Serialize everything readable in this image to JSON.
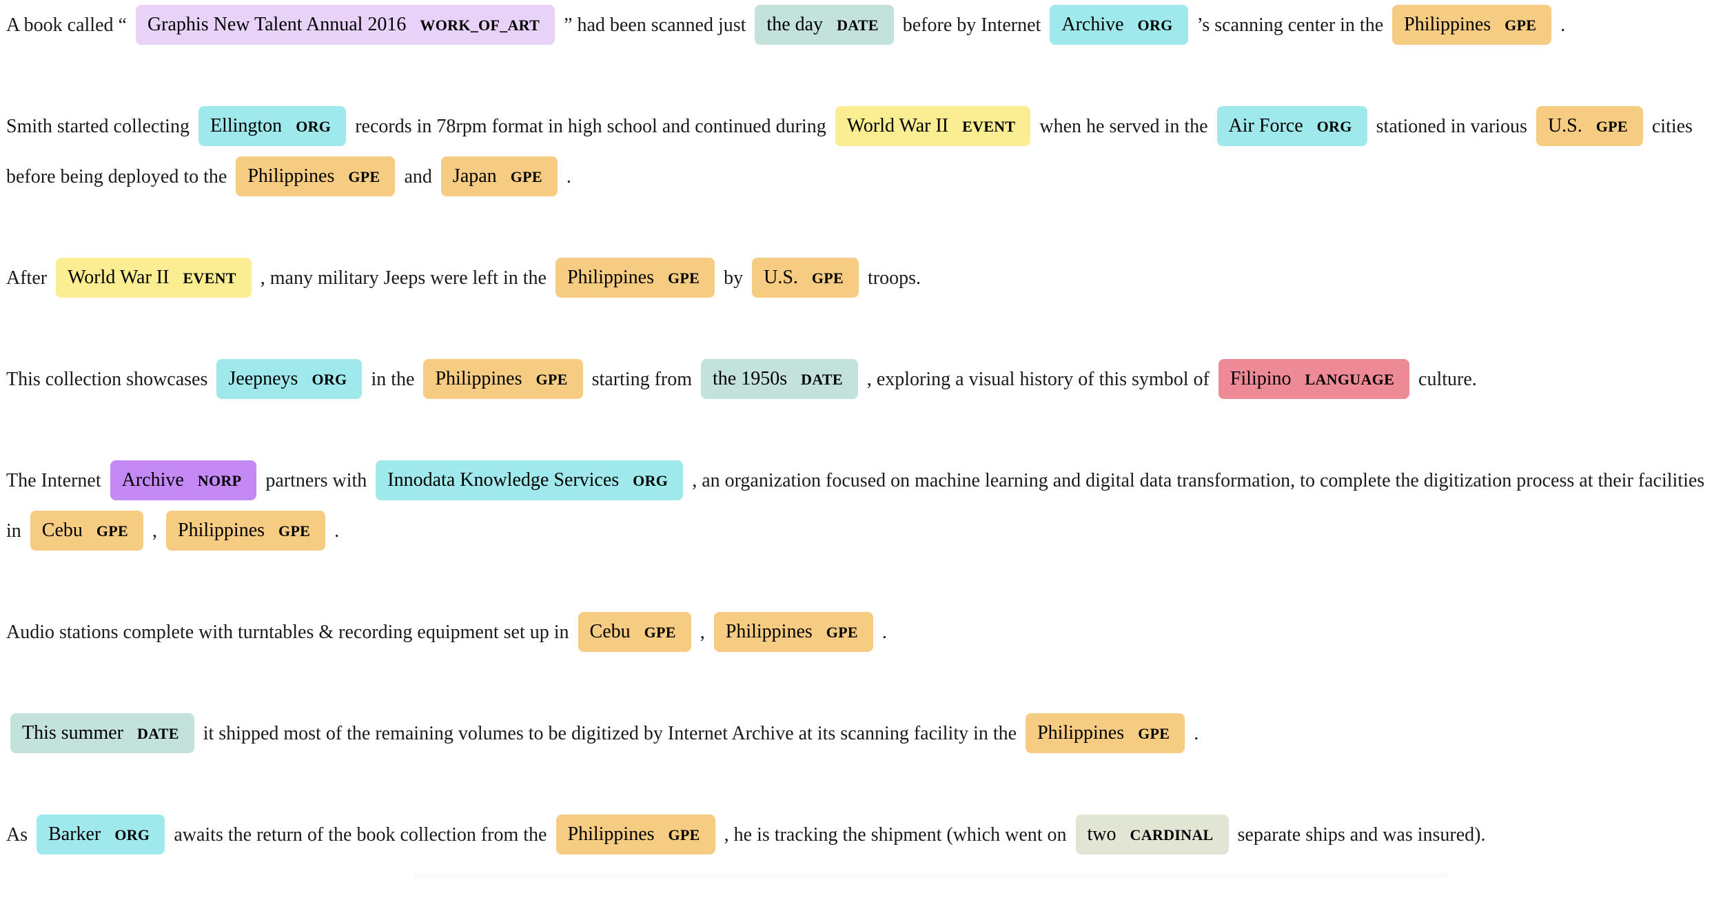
{
  "colors": {
    "WORK_OF_ART": "#e8d2f8",
    "DATE": "#c4e2dc",
    "ORG": "#9fe9ec",
    "GPE": "#f6cc83",
    "EVENT": "#fbed91",
    "LANGUAGE": "#ee8a96",
    "NORP": "#c589f5",
    "CARDINAL": "#e1e5d4"
  },
  "paragraphs": [
    [
      {
        "t": "A book called “"
      },
      {
        "e": "Graphis New Talent Annual 2016",
        "l": "WORK_OF_ART"
      },
      {
        "t": "” had been scanned just"
      },
      {
        "e": "the day",
        "l": "DATE"
      },
      {
        "t": "before by Internet"
      },
      {
        "e": "Archive",
        "l": "ORG"
      },
      {
        "t": "’s scanning center in the"
      },
      {
        "e": "Philippines",
        "l": "GPE"
      },
      {
        "t": "."
      }
    ],
    [
      {
        "t": "Smith started collecting"
      },
      {
        "e": "Ellington",
        "l": "ORG"
      },
      {
        "t": "records in 78rpm format in high school and continued during"
      },
      {
        "e": "World War II",
        "l": "EVENT"
      },
      {
        "t": "when he served in the"
      },
      {
        "e": "Air Force",
        "l": "ORG"
      },
      {
        "t": "stationed in various"
      },
      {
        "e": "U.S.",
        "l": "GPE"
      },
      {
        "t": "cities before being deployed to the"
      },
      {
        "e": "Philippines",
        "l": "GPE"
      },
      {
        "t": "and"
      },
      {
        "e": "Japan",
        "l": "GPE"
      },
      {
        "t": "."
      }
    ],
    [
      {
        "t": "After"
      },
      {
        "e": "World War II",
        "l": "EVENT"
      },
      {
        "t": ", many military Jeeps were left in the"
      },
      {
        "e": "Philippines",
        "l": "GPE"
      },
      {
        "t": "by"
      },
      {
        "e": "U.S.",
        "l": "GPE"
      },
      {
        "t": "troops."
      }
    ],
    [
      {
        "t": "This collection showcases"
      },
      {
        "e": "Jeepneys",
        "l": "ORG"
      },
      {
        "t": "in the"
      },
      {
        "e": "Philippines",
        "l": "GPE"
      },
      {
        "t": "starting from"
      },
      {
        "e": "the 1950s",
        "l": "DATE"
      },
      {
        "t": ", exploring a visual history of this symbol of"
      },
      {
        "e": "Filipino",
        "l": "LANGUAGE"
      },
      {
        "t": "culture."
      }
    ],
    [
      {
        "t": "The Internet"
      },
      {
        "e": "Archive",
        "l": "NORP"
      },
      {
        "t": "partners with"
      },
      {
        "e": "Innodata Knowledge Services",
        "l": "ORG"
      },
      {
        "t": ", an organization focused on machine learning and digital data transformation, to complete the digitization process at their facilities in"
      },
      {
        "e": "Cebu",
        "l": "GPE"
      },
      {
        "t": ","
      },
      {
        "e": "Philippines",
        "l": "GPE"
      },
      {
        "t": "."
      }
    ],
    [
      {
        "t": "Audio stations complete with turntables & recording equipment set up in"
      },
      {
        "e": "Cebu",
        "l": "GPE"
      },
      {
        "t": ","
      },
      {
        "e": "Philippines",
        "l": "GPE"
      },
      {
        "t": "."
      }
    ],
    [
      {
        "e": "This summer",
        "l": "DATE"
      },
      {
        "t": "it shipped most of the remaining volumes to be digitized by Internet Archive at its scanning facility in the"
      },
      {
        "e": "Philippines",
        "l": "GPE"
      },
      {
        "t": "."
      }
    ],
    [
      {
        "t": "As"
      },
      {
        "e": "Barker",
        "l": "ORG"
      },
      {
        "t": "awaits the return of the book collection from the"
      },
      {
        "e": "Philippines",
        "l": "GPE"
      },
      {
        "t": ", he is tracking the shipment (which went on"
      },
      {
        "e": "two",
        "l": "CARDINAL"
      },
      {
        "t": "separate ships and was insured)."
      }
    ]
  ]
}
